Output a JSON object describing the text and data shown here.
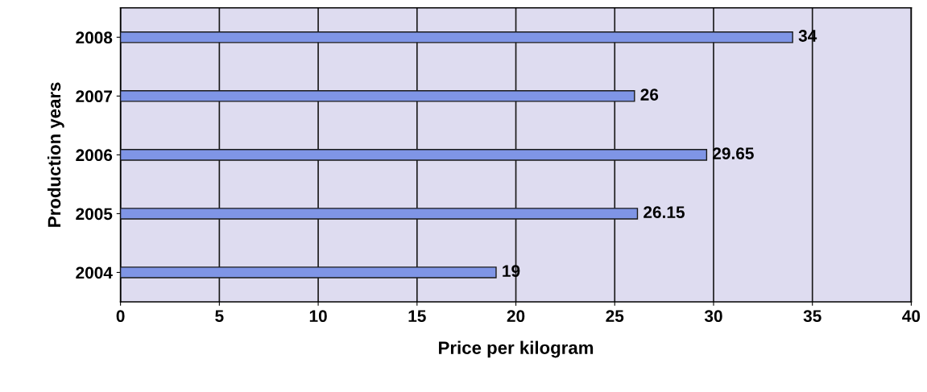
{
  "chart_data": {
    "type": "bar",
    "orientation": "horizontal",
    "xlabel": "Price per kilogram",
    "ylabel": "Production years",
    "categories": [
      "2008",
      "2007",
      "2006",
      "2005",
      "2004"
    ],
    "values": [
      34,
      26,
      29.65,
      26.15,
      19
    ],
    "color": "#7f95e6",
    "xlim": [
      0,
      40
    ],
    "xticks": [
      0,
      5,
      10,
      15,
      20,
      25,
      30,
      35,
      40
    ],
    "grid": "x",
    "data_labels": true
  }
}
